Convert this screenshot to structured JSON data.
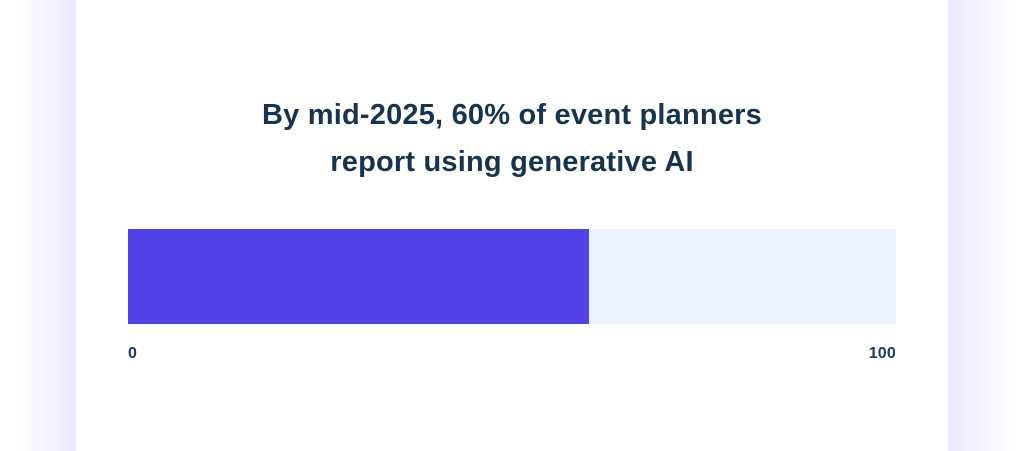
{
  "page": {
    "background_color": "#ffffff",
    "edge_glow_color": "#eceafb",
    "card_background_color": "#ffffff"
  },
  "chart_data": {
    "type": "bar",
    "orientation": "horizontal",
    "title": "By mid-2025, 60% of event planners report using generative AI",
    "title_line1": "By mid-2025, 60% of event planners",
    "title_line2": "report using generative AI",
    "categories": [
      "Event planners using generative AI"
    ],
    "values": [
      60
    ],
    "unit": "%",
    "xlim": [
      0,
      100
    ],
    "tick_labels": [
      "0",
      "100"
    ],
    "bar_color": "#5341e8",
    "track_color": "#ebf2fc",
    "title_color": "#16344f",
    "tick_label_color": "#1b3a63",
    "grid": false,
    "legend_position": "none"
  }
}
